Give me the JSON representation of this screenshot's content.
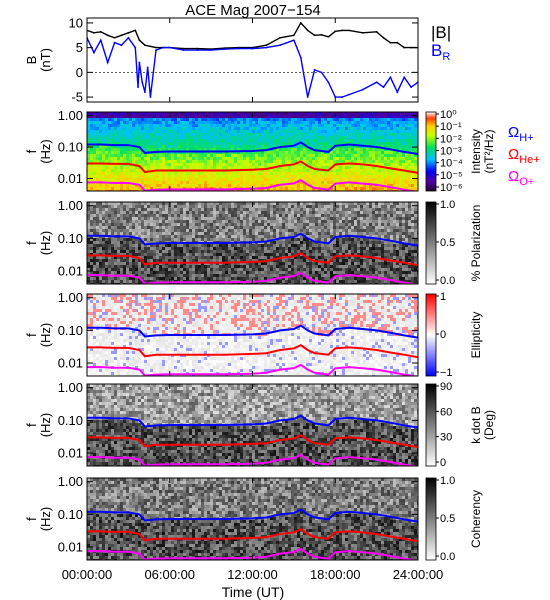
{
  "chart_data": {
    "title": "ACE Mag 2007−154",
    "xlabel": "Time (UT)",
    "x_tick_labels": [
      "00:00:00",
      "06:00:00",
      "12:00:00",
      "18:00:00",
      "24:00:00"
    ],
    "x_range_hours": [
      0,
      24
    ],
    "panels": [
      {
        "type": "line",
        "id": "b-field",
        "ylabel_lines": [
          "B",
          "(nT)"
        ],
        "ylim": [
          -6,
          11
        ],
        "y_tick_labels": [
          "10",
          "5",
          "0",
          "-5"
        ],
        "y_ticks": [
          10,
          5,
          0,
          -5
        ],
        "legend": [
          "|B|",
          "B_R"
        ],
        "series": [
          {
            "name": "|B|",
            "color": "#000000",
            "x": [
              0,
              0.5,
              1,
              1.5,
              2,
              2.5,
              3,
              3.5,
              3.8,
              4.2,
              5,
              6,
              7,
              8,
              9,
              10,
              11,
              12,
              13,
              14,
              15,
              15.5,
              16,
              16.5,
              17,
              17.5,
              18,
              18.5,
              19,
              20,
              21,
              21.5,
              22,
              22.5,
              23,
              23.5,
              24
            ],
            "y": [
              8.5,
              8,
              8.2,
              7.5,
              7,
              7.5,
              8,
              8.5,
              6.5,
              5.5,
              5,
              5,
              4.8,
              4.8,
              4.7,
              4.9,
              5,
              5,
              5.5,
              7,
              7.5,
              10,
              8.5,
              7.5,
              7.6,
              7.2,
              8.3,
              8.5,
              8.5,
              8,
              8.2,
              7,
              6,
              6,
              5,
              5,
              5
            ]
          },
          {
            "name": "B_R",
            "color": "#0000ff",
            "x": [
              0,
              0.5,
              1,
              1.5,
              2,
              2.5,
              3,
              3.5,
              3.7,
              3.8,
              4,
              4.2,
              4.4,
              4.6,
              5,
              5.5,
              6,
              7,
              8,
              9,
              10,
              11,
              12,
              13,
              14,
              15,
              15.5,
              16,
              16.5,
              17,
              17.5,
              18,
              18.5,
              19,
              20,
              21,
              21.5,
              22,
              22.5,
              23,
              23.5,
              24
            ],
            "y": [
              7,
              4,
              6.5,
              2,
              6,
              5.5,
              7,
              5,
              -3,
              2,
              -2,
              -4,
              1,
              -5,
              4.5,
              5,
              5,
              4.5,
              4.5,
              4.5,
              4.7,
              4.8,
              4.8,
              5,
              5.5,
              6.5,
              3,
              -5,
              0.5,
              0,
              -2,
              -5,
              -5,
              -4.5,
              -3.5,
              -2,
              -3,
              -1,
              -4,
              -1,
              -3,
              -2
            ]
          }
        ]
      },
      {
        "type": "heatmap",
        "id": "intensity",
        "ylabel_lines": [
          "f",
          "(Hz)"
        ],
        "y_tick_labels": [
          "1.00",
          "0.10",
          "0.01"
        ],
        "colorbar": {
          "colormap": "rainbow",
          "tick_labels": [
            "10⁰",
            "10⁻¹",
            "10⁻²",
            "10⁻³",
            "10⁻⁴",
            "10⁻⁵",
            "10⁻⁶"
          ],
          "label_lines": [
            "Intensity",
            "(nT²/Hz)"
          ]
        },
        "gyro_legend": [
          {
            "label": "ΩH+",
            "color": "#0000ff"
          },
          {
            "label": "ΩHe+",
            "color": "#ff0000"
          },
          {
            "label": "ΩO+",
            "color": "#ff00ff"
          }
        ]
      },
      {
        "type": "heatmap",
        "id": "polarization",
        "ylabel_lines": [
          "f",
          "(Hz)"
        ],
        "y_tick_labels": [
          "1.00",
          "0.10",
          "0.01"
        ],
        "colorbar": {
          "colormap": "gray",
          "tick_labels": [
            "1.0",
            "0.5",
            "0.0"
          ],
          "label_lines": [
            "% Polarization"
          ]
        }
      },
      {
        "type": "heatmap",
        "id": "ellipticity",
        "ylabel_lines": [
          "f",
          "(Hz)"
        ],
        "y_tick_labels": [
          "1.00",
          "0.10",
          "0.01"
        ],
        "colorbar": {
          "colormap": "bluewhitered",
          "tick_labels": [
            "1",
            "0",
            "−1"
          ],
          "label_lines": [
            "Ellipticity"
          ]
        }
      },
      {
        "type": "heatmap",
        "id": "kdotb",
        "ylabel_lines": [
          "f",
          "(Hz)"
        ],
        "y_tick_labels": [
          "1.00",
          "0.10",
          "0.01"
        ],
        "colorbar": {
          "colormap": "gray",
          "tick_labels": [
            "90",
            "60",
            "30",
            "0"
          ],
          "label_lines": [
            "k dot B",
            "(Deg)"
          ]
        }
      },
      {
        "type": "heatmap",
        "id": "coherency",
        "ylabel_lines": [
          "f",
          "(Hz)"
        ],
        "y_tick_labels": [
          "1.00",
          "0.10",
          "0.01"
        ],
        "colorbar": {
          "colormap": "gray",
          "tick_labels": [
            "1.0",
            "0.5",
            "0.0"
          ],
          "label_lines": [
            "Coherency"
          ]
        }
      }
    ],
    "y_frequency_scale": "log",
    "y_frequency_ticks_hz": [
      1.0,
      0.1,
      0.01
    ],
    "gyrofrequency_series": [
      {
        "name": "ΩH+",
        "color": "#0000ff",
        "x": [
          0,
          1,
          2,
          3,
          3.8,
          4.2,
          5,
          6,
          8,
          10,
          12,
          13,
          14,
          15,
          15.5,
          16,
          16.5,
          17,
          17.5,
          18,
          19,
          20,
          21,
          22,
          23,
          24
        ],
        "y": [
          0.12,
          0.12,
          0.115,
          0.115,
          0.1,
          0.065,
          0.07,
          0.072,
          0.072,
          0.072,
          0.075,
          0.08,
          0.1,
          0.11,
          0.14,
          0.1,
          0.08,
          0.075,
          0.07,
          0.11,
          0.12,
          0.11,
          0.1,
          0.085,
          0.07,
          0.06
        ]
      },
      {
        "name": "ΩHe+",
        "color": "#ff0000",
        "x": [
          0,
          1,
          2,
          3,
          3.8,
          4.2,
          5,
          6,
          8,
          10,
          12,
          13,
          14,
          15,
          15.5,
          16,
          16.5,
          17,
          17.5,
          18,
          19,
          20,
          21,
          22,
          23,
          24
        ],
        "y": [
          0.03,
          0.03,
          0.029,
          0.029,
          0.025,
          0.016,
          0.018,
          0.018,
          0.018,
          0.018,
          0.019,
          0.02,
          0.025,
          0.028,
          0.035,
          0.025,
          0.02,
          0.019,
          0.018,
          0.028,
          0.03,
          0.028,
          0.025,
          0.021,
          0.018,
          0.015
        ]
      },
      {
        "name": "ΩO+",
        "color": "#ff00ff",
        "x": [
          0,
          1,
          2,
          3,
          3.8,
          4.2,
          5,
          6,
          8,
          10,
          12,
          13,
          14,
          15,
          15.5,
          16,
          16.5,
          17,
          17.5,
          18,
          19,
          20,
          21,
          22,
          23,
          24
        ],
        "y": [
          0.0075,
          0.0075,
          0.0072,
          0.0072,
          0.0063,
          0.0041,
          0.0044,
          0.0045,
          0.0045,
          0.0045,
          0.0047,
          0.005,
          0.0063,
          0.007,
          0.0088,
          0.0063,
          0.005,
          0.0047,
          0.0044,
          0.0069,
          0.0075,
          0.0069,
          0.0063,
          0.0053,
          0.0044,
          0.0038
        ]
      }
    ],
    "colors": {
      "frame": "#000000",
      "background": "#ffffff"
    }
  }
}
